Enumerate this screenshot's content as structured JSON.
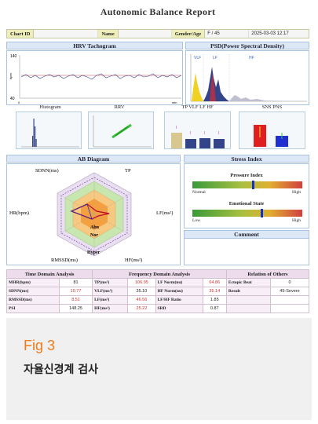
{
  "report": {
    "title": "Autonomic Balance Report",
    "info": {
      "chart_id_label": "Chart ID",
      "name_label": "Name",
      "gender_age_label": "Gender/Age",
      "gender": "F",
      "age": "45",
      "datetime": "2025-03-03 12:17"
    },
    "tachogram": {
      "title": "HRV Tachogram",
      "y_top": "140",
      "y_bottom": "40",
      "y_unit": "bpm",
      "x_start": "0",
      "x_unit": "min"
    },
    "psd": {
      "title": "PSD(Power Spectral Density)",
      "bands": [
        "VLF",
        "LF",
        "HF"
      ]
    },
    "mini_titles": {
      "histogram": "Histogram",
      "rrv": "RRV",
      "bands": "TP  VLF  LF  HF",
      "sns_pns": "SNS    PNS"
    },
    "ab": {
      "title": "AB Diagram",
      "labels": {
        "sdnn": "SDNN(ms)",
        "tp": "TP",
        "hr": "HR(bpm)",
        "lf": "LF(ms²)",
        "rmssd": "RMSSD(ms)",
        "hf": "HF(ms²)",
        "abn": "Abn",
        "nor": "Nor",
        "hyper": "Hyper"
      }
    },
    "stress": {
      "title": "Stress Index",
      "pressure_label": "Pressure Index",
      "normal": "Normal",
      "high": "High",
      "emotional_label": "Emotional State",
      "low": "Low",
      "high2": "High",
      "pressure_marker": 0.55,
      "emotional_marker": 0.63
    },
    "comment": {
      "title": "Comment"
    },
    "tables": {
      "time_title": "Time Domain Analysis",
      "freq_title": "Frequency Domain Analysis",
      "rel_title": "Relation of Others",
      "rows": [
        {
          "k1": "MHR(bpm)",
          "v1": "81",
          "k2": "TP(ms²)",
          "v2": "106.95",
          "k3": "LF Norm(nu)",
          "v3": "64.86",
          "k4": "Ectopic Beat",
          "v4": "0"
        },
        {
          "k1": "SDNN(ms)",
          "v1": "10.77",
          "k2": "VLF(ms²)",
          "v2": "35.10",
          "k3": "HF Norm(nu)",
          "v3": "35.14",
          "k4": "Result",
          "v4": "45-Severe"
        },
        {
          "k1": "RMSSD(ms)",
          "v1": "8.51",
          "k2": "LF(ms²)",
          "v2": "46.56",
          "k3": "LF/HF Ratio",
          "v3": "1.85",
          "k4": "",
          "v4": ""
        },
        {
          "k1": "PSI",
          "v1": "148.25",
          "k2": "HF(ms²)",
          "v2": "25.22",
          "k3": "SRD",
          "v3": "0.87",
          "k4": "",
          "v4": ""
        }
      ]
    }
  },
  "caption": {
    "fig": "Fig 3",
    "text": "자율신경계 검사"
  },
  "colors": {
    "accent_orange": "#ef7a1a",
    "panel_blue": "#dce8f5",
    "table_pink": "#ecdcec"
  }
}
